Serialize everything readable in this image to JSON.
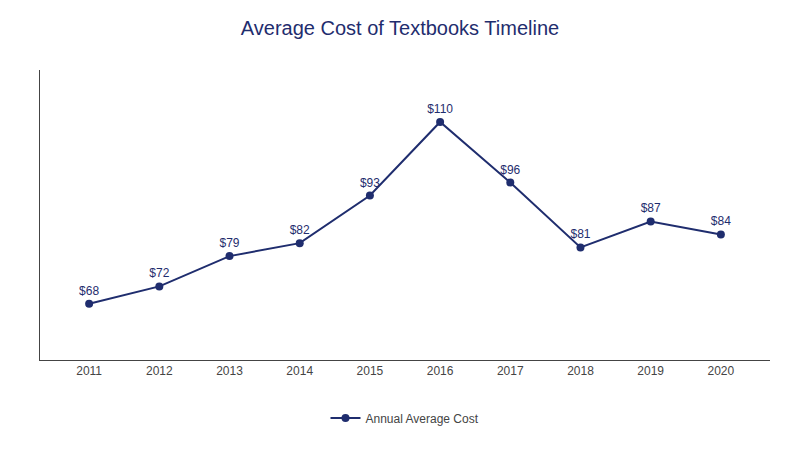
{
  "chart_data": {
    "type": "line",
    "title": "Average Cost of Textbooks Timeline",
    "x": [
      2011,
      2012,
      2013,
      2014,
      2015,
      2016,
      2017,
      2018,
      2019,
      2020
    ],
    "series": [
      {
        "name": "Annual Average Cost",
        "color": "#1f2d6e",
        "marker": "circle",
        "line_style": "solid",
        "values": [
          68,
          72,
          79,
          82,
          93,
          110,
          96,
          81,
          87,
          84
        ],
        "value_labels": [
          "$68",
          "$72",
          "$79",
          "$82",
          "$93",
          "$110",
          "$96",
          "$81",
          "$87",
          "$84"
        ]
      }
    ],
    "xlim": [
      2010.3,
      2020.7
    ],
    "xticks": [
      2011,
      2012,
      2013,
      2014,
      2015,
      2016,
      2017,
      2018,
      2019,
      2020
    ],
    "ylim": [
      55,
      122
    ],
    "data_labels": true,
    "tick_labels": "x",
    "grid": false,
    "legend": "bottom"
  }
}
